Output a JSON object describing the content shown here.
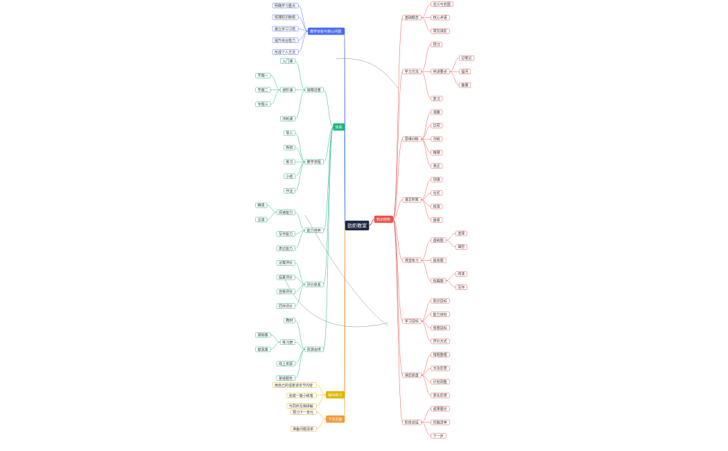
{
  "center": "劲奶教室",
  "branches": [
    {
      "label": "知识结构",
      "color": "#e8534a",
      "children": [
        {
          "label": "基础概念",
          "children": [
            {
              "label": "定义与范围"
            },
            {
              "label": "核心术语"
            },
            {
              "label": "常见误区"
            }
          ]
        },
        {
          "label": "学习方法",
          "children": [
            {
              "label": "预习"
            },
            {
              "label": "听讲要点",
              "children": [
                {
                  "label": "记笔记"
                },
                {
                  "label": "提问"
                },
                {
                  "label": "整理"
                }
              ]
            },
            {
              "label": "复习"
            }
          ]
        },
        {
          "label": "思维训练",
          "children": [
            {
              "label": "观察"
            },
            {
              "label": "比较"
            },
            {
              "label": "归纳"
            },
            {
              "label": "推理"
            },
            {
              "label": "表达"
            }
          ]
        },
        {
          "label": "语言积累",
          "children": [
            {
              "label": "词语"
            },
            {
              "label": "句式"
            },
            {
              "label": "段落"
            },
            {
              "label": "篇章"
            }
          ]
        },
        {
          "label": "课堂练习",
          "children": [
            {
              "label": "基础题",
              "children": [
                {
                  "label": "选择"
                },
                {
                  "label": "填空"
                }
              ]
            },
            {
              "label": "提高题"
            },
            {
              "label": "拓展题",
              "children": [
                {
                  "label": "阅读"
                },
                {
                  "label": "写作"
                }
              ]
            }
          ]
        },
        {
          "label": "学习目标",
          "children": [
            {
              "label": "知识目标"
            },
            {
              "label": "能力目标"
            },
            {
              "label": "情感目标"
            },
            {
              "label": "评价方式"
            }
          ]
        },
        {
          "label": "课后复盘",
          "children": [
            {
              "label": "错题整理"
            },
            {
              "label": "方法反思"
            },
            {
              "label": "计划调整"
            },
            {
              "label": "家长反馈"
            }
          ]
        },
        {
          "label": "阶段总结",
          "children": [
            {
              "label": "成果展示"
            },
            {
              "label": "问题清单"
            },
            {
              "label": "下一步"
            }
          ]
        }
      ]
    },
    {
      "label": "体系",
      "color": "#1fb57a",
      "children": [
        {
          "label": "课程设置",
          "children": [
            {
              "label": "入门课"
            },
            {
              "label": "进阶课",
              "children": [
                {
                  "label": "专题一"
                },
                {
                  "label": "专题二"
                },
                {
                  "label": "专题三"
                }
              ]
            },
            {
              "label": "冲刺课"
            }
          ]
        },
        {
          "label": "教学流程",
          "children": [
            {
              "label": "导入"
            },
            {
              "label": "新授"
            },
            {
              "label": "练习"
            },
            {
              "label": "小结"
            },
            {
              "label": "作业"
            }
          ]
        },
        {
          "label": "能力培养",
          "children": [
            {
              "label": "阅读能力",
              "children": [
                {
                  "label": "精读"
                },
                {
                  "label": "泛读"
                }
              ]
            },
            {
              "label": "写作能力"
            },
            {
              "label": "表达能力"
            }
          ]
        },
        {
          "label": "评价体系",
          "children": [
            {
              "label": "过程评价"
            },
            {
              "label": "结果评价"
            },
            {
              "label": "自我评价"
            },
            {
              "label": "同伴评价"
            }
          ]
        },
        {
          "label": "资源支持",
          "children": [
            {
              "label": "教材"
            },
            {
              "label": "练习册",
              "children": [
                {
                  "label": "基础版"
                },
                {
                  "label": "提高版"
                }
              ]
            },
            {
              "label": "线上资源"
            },
            {
              "label": "答疑服务"
            }
          ]
        }
      ]
    },
    {
      "label": "教学目标与核心问题",
      "color": "#4a6cf0",
      "children": [
        {
          "label": "明确学习重点"
        },
        {
          "label": "梳理知识脉络"
        },
        {
          "label": "建立学习习惯"
        },
        {
          "label": "提升综合能力"
        },
        {
          "label": "形成个人方法"
        }
      ]
    },
    {
      "label": "输出练习",
      "color": "#e0b400",
      "children": [
        {
          "label": "用自己的话复述本节内容"
        },
        {
          "label": "完成一篇小练笔"
        },
        {
          "label": "与同伴互相讲解"
        }
      ]
    },
    {
      "label": "下次见面",
      "color": "#f29b38",
      "children": [
        {
          "label": "预习下一单元"
        },
        {
          "label": "准备问题清单"
        }
      ]
    }
  ]
}
